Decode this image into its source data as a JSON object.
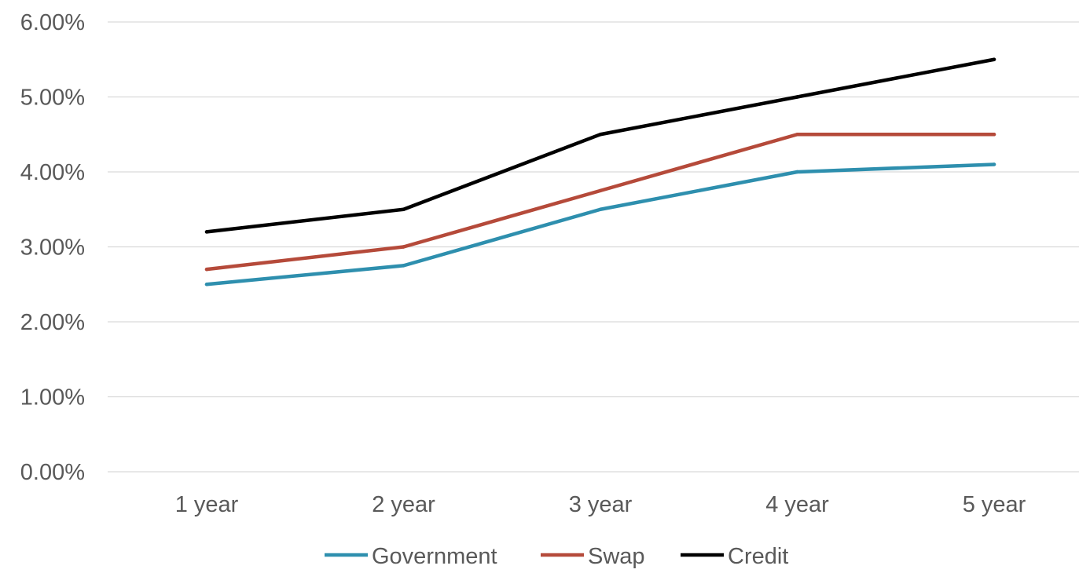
{
  "chart_data": {
    "type": "line",
    "categories": [
      "1 year",
      "2 year",
      "3 year",
      "4 year",
      "5 year"
    ],
    "series": [
      {
        "name": "Government",
        "color": "#2e8fae",
        "values": [
          2.5,
          2.75,
          3.5,
          4.0,
          4.1
        ]
      },
      {
        "name": "Swap",
        "color": "#b54a3a",
        "values": [
          2.7,
          3.0,
          3.75,
          4.5,
          4.5
        ]
      },
      {
        "name": "Credit",
        "color": "#000000",
        "values": [
          3.2,
          3.5,
          4.5,
          5.0,
          5.5
        ]
      }
    ],
    "ylim": [
      0,
      6
    ],
    "yticks": [
      "0.00%",
      "1.00%",
      "2.00%",
      "3.00%",
      "4.00%",
      "5.00%",
      "6.00%"
    ],
    "ytick_values": [
      0,
      1,
      2,
      3,
      4,
      5,
      6
    ],
    "grid": true,
    "gridline_color": "#d9d9d9",
    "legend_position": "bottom"
  }
}
